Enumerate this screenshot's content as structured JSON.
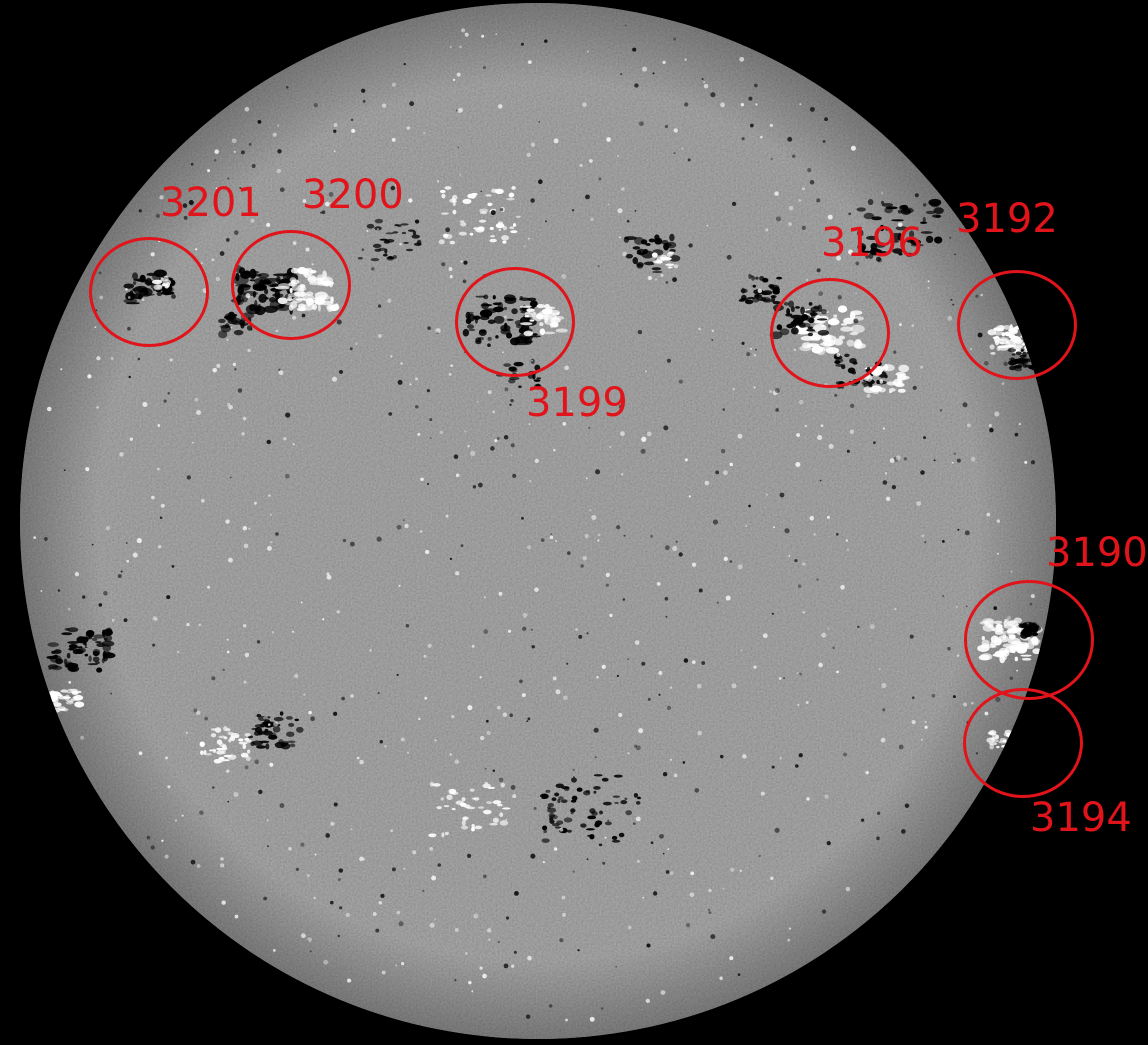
{
  "image": {
    "subject": "solar-disk-magnetogram",
    "colors": {
      "background": "#000000",
      "disk_gray": "#7a7a7a",
      "positive_polarity": "#ffffff",
      "negative_polarity": "#000000",
      "annotation": "#e0141a"
    }
  },
  "regions": [
    {
      "id": "3201",
      "label": "3201"
    },
    {
      "id": "3200",
      "label": "3200"
    },
    {
      "id": "3199",
      "label": "3199"
    },
    {
      "id": "3196",
      "label": "3196"
    },
    {
      "id": "3192",
      "label": "3192"
    },
    {
      "id": "3190",
      "label": "3190"
    },
    {
      "id": "3194",
      "label": "3194"
    }
  ]
}
